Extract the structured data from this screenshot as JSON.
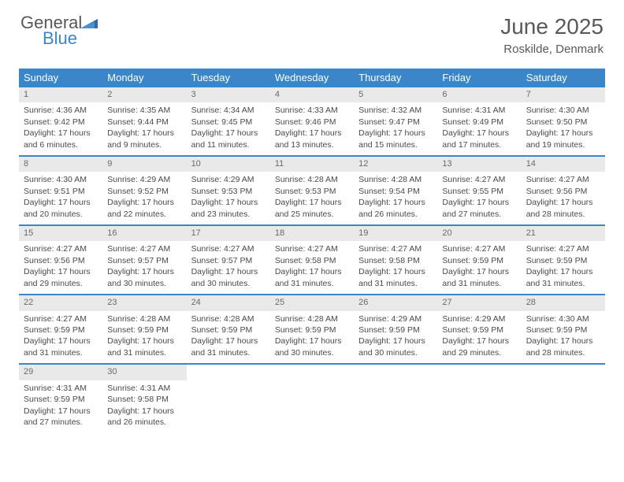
{
  "logo": {
    "general": "General",
    "blue": "Blue"
  },
  "title": "June 2025",
  "location": "Roskilde, Denmark",
  "colors": {
    "header_bg": "#3a86c8",
    "header_text": "#ffffff",
    "daynum_bg": "#e9e9e9",
    "daynum_text": "#6a6a6a",
    "cell_text": "#4a4a4a",
    "title_text": "#595959",
    "logo_grey": "#585858",
    "logo_blue": "#3a86c8",
    "row_border": "#3a86c8",
    "background": "#ffffff"
  },
  "typography": {
    "title_fontsize": 28,
    "subtitle_fontsize": 15,
    "dayhead_fontsize": 13,
    "daynum_fontsize": 11,
    "cell_fontsize": 10.5
  },
  "layout": {
    "week_columns": 7,
    "rows": 5
  },
  "day_names": [
    "Sunday",
    "Monday",
    "Tuesday",
    "Wednesday",
    "Thursday",
    "Friday",
    "Saturday"
  ],
  "days": [
    {
      "n": "1",
      "sr": "Sunrise: 4:36 AM",
      "ss": "Sunset: 9:42 PM",
      "d1": "Daylight: 17 hours",
      "d2": "and 6 minutes."
    },
    {
      "n": "2",
      "sr": "Sunrise: 4:35 AM",
      "ss": "Sunset: 9:44 PM",
      "d1": "Daylight: 17 hours",
      "d2": "and 9 minutes."
    },
    {
      "n": "3",
      "sr": "Sunrise: 4:34 AM",
      "ss": "Sunset: 9:45 PM",
      "d1": "Daylight: 17 hours",
      "d2": "and 11 minutes."
    },
    {
      "n": "4",
      "sr": "Sunrise: 4:33 AM",
      "ss": "Sunset: 9:46 PM",
      "d1": "Daylight: 17 hours",
      "d2": "and 13 minutes."
    },
    {
      "n": "5",
      "sr": "Sunrise: 4:32 AM",
      "ss": "Sunset: 9:47 PM",
      "d1": "Daylight: 17 hours",
      "d2": "and 15 minutes."
    },
    {
      "n": "6",
      "sr": "Sunrise: 4:31 AM",
      "ss": "Sunset: 9:49 PM",
      "d1": "Daylight: 17 hours",
      "d2": "and 17 minutes."
    },
    {
      "n": "7",
      "sr": "Sunrise: 4:30 AM",
      "ss": "Sunset: 9:50 PM",
      "d1": "Daylight: 17 hours",
      "d2": "and 19 minutes."
    },
    {
      "n": "8",
      "sr": "Sunrise: 4:30 AM",
      "ss": "Sunset: 9:51 PM",
      "d1": "Daylight: 17 hours",
      "d2": "and 20 minutes."
    },
    {
      "n": "9",
      "sr": "Sunrise: 4:29 AM",
      "ss": "Sunset: 9:52 PM",
      "d1": "Daylight: 17 hours",
      "d2": "and 22 minutes."
    },
    {
      "n": "10",
      "sr": "Sunrise: 4:29 AM",
      "ss": "Sunset: 9:53 PM",
      "d1": "Daylight: 17 hours",
      "d2": "and 23 minutes."
    },
    {
      "n": "11",
      "sr": "Sunrise: 4:28 AM",
      "ss": "Sunset: 9:53 PM",
      "d1": "Daylight: 17 hours",
      "d2": "and 25 minutes."
    },
    {
      "n": "12",
      "sr": "Sunrise: 4:28 AM",
      "ss": "Sunset: 9:54 PM",
      "d1": "Daylight: 17 hours",
      "d2": "and 26 minutes."
    },
    {
      "n": "13",
      "sr": "Sunrise: 4:27 AM",
      "ss": "Sunset: 9:55 PM",
      "d1": "Daylight: 17 hours",
      "d2": "and 27 minutes."
    },
    {
      "n": "14",
      "sr": "Sunrise: 4:27 AM",
      "ss": "Sunset: 9:56 PM",
      "d1": "Daylight: 17 hours",
      "d2": "and 28 minutes."
    },
    {
      "n": "15",
      "sr": "Sunrise: 4:27 AM",
      "ss": "Sunset: 9:56 PM",
      "d1": "Daylight: 17 hours",
      "d2": "and 29 minutes."
    },
    {
      "n": "16",
      "sr": "Sunrise: 4:27 AM",
      "ss": "Sunset: 9:57 PM",
      "d1": "Daylight: 17 hours",
      "d2": "and 30 minutes."
    },
    {
      "n": "17",
      "sr": "Sunrise: 4:27 AM",
      "ss": "Sunset: 9:57 PM",
      "d1": "Daylight: 17 hours",
      "d2": "and 30 minutes."
    },
    {
      "n": "18",
      "sr": "Sunrise: 4:27 AM",
      "ss": "Sunset: 9:58 PM",
      "d1": "Daylight: 17 hours",
      "d2": "and 31 minutes."
    },
    {
      "n": "19",
      "sr": "Sunrise: 4:27 AM",
      "ss": "Sunset: 9:58 PM",
      "d1": "Daylight: 17 hours",
      "d2": "and 31 minutes."
    },
    {
      "n": "20",
      "sr": "Sunrise: 4:27 AM",
      "ss": "Sunset: 9:59 PM",
      "d1": "Daylight: 17 hours",
      "d2": "and 31 minutes."
    },
    {
      "n": "21",
      "sr": "Sunrise: 4:27 AM",
      "ss": "Sunset: 9:59 PM",
      "d1": "Daylight: 17 hours",
      "d2": "and 31 minutes."
    },
    {
      "n": "22",
      "sr": "Sunrise: 4:27 AM",
      "ss": "Sunset: 9:59 PM",
      "d1": "Daylight: 17 hours",
      "d2": "and 31 minutes."
    },
    {
      "n": "23",
      "sr": "Sunrise: 4:28 AM",
      "ss": "Sunset: 9:59 PM",
      "d1": "Daylight: 17 hours",
      "d2": "and 31 minutes."
    },
    {
      "n": "24",
      "sr": "Sunrise: 4:28 AM",
      "ss": "Sunset: 9:59 PM",
      "d1": "Daylight: 17 hours",
      "d2": "and 31 minutes."
    },
    {
      "n": "25",
      "sr": "Sunrise: 4:28 AM",
      "ss": "Sunset: 9:59 PM",
      "d1": "Daylight: 17 hours",
      "d2": "and 30 minutes."
    },
    {
      "n": "26",
      "sr": "Sunrise: 4:29 AM",
      "ss": "Sunset: 9:59 PM",
      "d1": "Daylight: 17 hours",
      "d2": "and 30 minutes."
    },
    {
      "n": "27",
      "sr": "Sunrise: 4:29 AM",
      "ss": "Sunset: 9:59 PM",
      "d1": "Daylight: 17 hours",
      "d2": "and 29 minutes."
    },
    {
      "n": "28",
      "sr": "Sunrise: 4:30 AM",
      "ss": "Sunset: 9:59 PM",
      "d1": "Daylight: 17 hours",
      "d2": "and 28 minutes."
    },
    {
      "n": "29",
      "sr": "Sunrise: 4:31 AM",
      "ss": "Sunset: 9:59 PM",
      "d1": "Daylight: 17 hours",
      "d2": "and 27 minutes."
    },
    {
      "n": "30",
      "sr": "Sunrise: 4:31 AM",
      "ss": "Sunset: 9:58 PM",
      "d1": "Daylight: 17 hours",
      "d2": "and 26 minutes."
    }
  ]
}
